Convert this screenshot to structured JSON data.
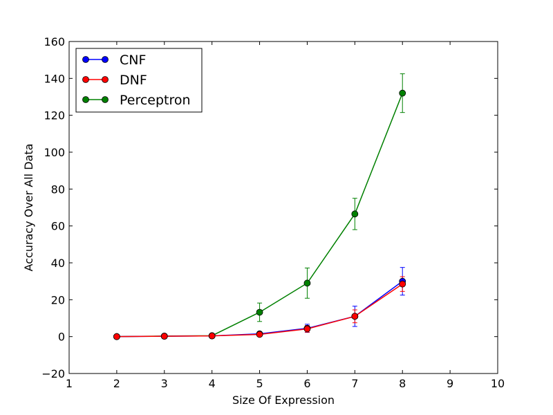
{
  "chart_data": {
    "type": "line",
    "title": "",
    "xlabel": "Size Of Expression",
    "ylabel": "Accuracy Over All Data",
    "xlim": [
      1,
      10
    ],
    "ylim": [
      -20,
      160
    ],
    "xticks": [
      1,
      2,
      3,
      4,
      5,
      6,
      7,
      8,
      9,
      10
    ],
    "yticks": [
      -20,
      0,
      20,
      40,
      60,
      80,
      100,
      120,
      140,
      160
    ],
    "xtick_labels": [
      "1",
      "2",
      "3",
      "4",
      "5",
      "6",
      "7",
      "8",
      "9",
      "10"
    ],
    "ytick_labels": [
      "−20",
      "0",
      "20",
      "40",
      "60",
      "80",
      "100",
      "120",
      "140",
      "160"
    ],
    "grid": false,
    "legend_position": "top-left",
    "series": [
      {
        "name": "CNF",
        "color": "#0000ff",
        "x": [
          2,
          3,
          4,
          5,
          6,
          7,
          8
        ],
        "y": [
          0,
          0.2,
          0.4,
          1.5,
          4.5,
          11,
          30
        ],
        "yerr": [
          0,
          0,
          0,
          1.2,
          2.2,
          5.5,
          7.5
        ]
      },
      {
        "name": "DNF",
        "color": "#ff0000",
        "x": [
          2,
          3,
          4,
          5,
          6,
          7,
          8
        ],
        "y": [
          0,
          0.2,
          0.4,
          1.2,
          4.2,
          11,
          28.5
        ],
        "yerr": [
          0,
          0,
          0,
          0.8,
          1.8,
          3.5,
          4
        ]
      },
      {
        "name": "Perceptron",
        "color": "#008000",
        "x": [
          2,
          3,
          4,
          5,
          6,
          7,
          8
        ],
        "y": [
          0,
          0.3,
          0.5,
          13.2,
          29,
          66.5,
          132
        ],
        "yerr": [
          0,
          0,
          0,
          5,
          8.2,
          8.5,
          10.5
        ]
      }
    ]
  }
}
